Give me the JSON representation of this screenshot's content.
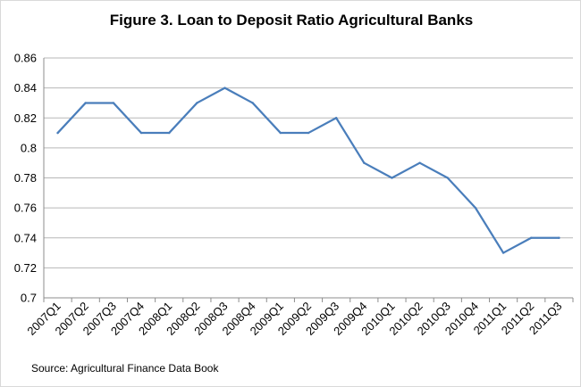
{
  "chart_data": {
    "type": "line",
    "title": "Figure 3. Loan to Deposit Ratio Agricultural Banks",
    "source": "Source:  Agricultural Finance Data Book",
    "categories": [
      "2007Q1",
      "2007Q2",
      "2007Q3",
      "2007Q4",
      "2008Q1",
      "2008Q2",
      "2008Q3",
      "2008Q4",
      "2009Q1",
      "2009Q2",
      "2009Q3",
      "2009Q4",
      "2010Q1",
      "2010Q2",
      "2010Q3",
      "2010Q4",
      "2011Q1",
      "2011Q2",
      "2011Q3"
    ],
    "series": [
      {
        "values": [
          0.81,
          0.83,
          0.83,
          0.81,
          0.81,
          0.83,
          0.84,
          0.83,
          0.81,
          0.81,
          0.82,
          0.79,
          0.78,
          0.79,
          0.78,
          0.76,
          0.73,
          0.74,
          0.74
        ],
        "color": "#4a7ebb"
      }
    ],
    "yticks": [
      "0.7",
      "0.72",
      "0.74",
      "0.76",
      "0.78",
      "0.8",
      "0.82",
      "0.84",
      "0.86"
    ],
    "ylim": [
      0.7,
      0.86
    ],
    "grid": true,
    "legend": "none"
  }
}
